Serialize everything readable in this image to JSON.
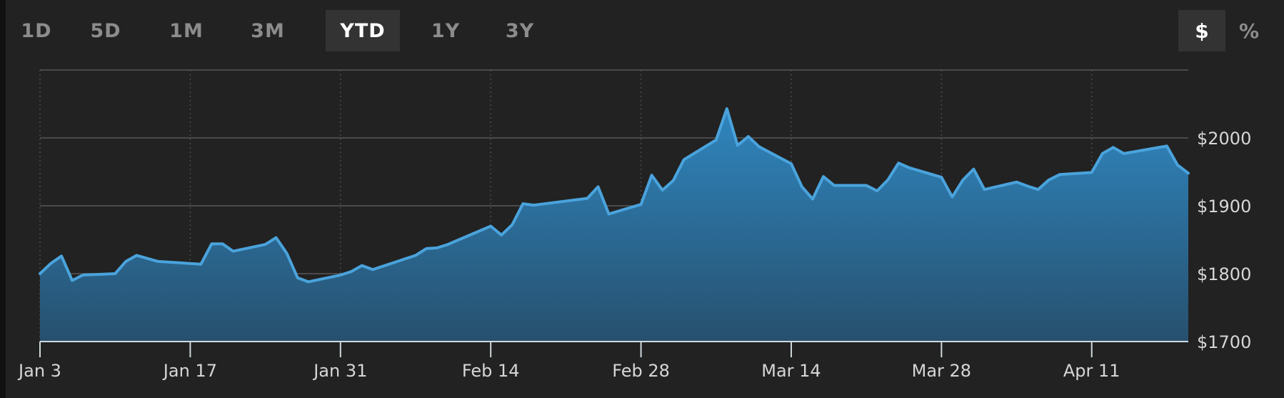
{
  "range_tabs": [
    {
      "label": "1D",
      "active": false
    },
    {
      "label": "5D",
      "active": false
    },
    {
      "label": "1M",
      "active": false
    },
    {
      "label": "3M",
      "active": false
    },
    {
      "label": "YTD",
      "active": true
    },
    {
      "label": "1Y",
      "active": false
    },
    {
      "label": "3Y",
      "active": false
    }
  ],
  "unit_tabs": [
    {
      "label": "$",
      "active": true
    },
    {
      "label": "%",
      "active": false
    }
  ],
  "colors": {
    "background": "#222222",
    "line": "#4aa3dc",
    "fill_top": "#2f86bf",
    "fill_bottom": "#27506e",
    "grid": "#4a4a4a",
    "axis": "#cfd8dc"
  },
  "chart_data": {
    "type": "area",
    "title": "",
    "xlabel": "",
    "ylabel": "",
    "x_tick_labels": [
      "Jan 3",
      "Jan 17",
      "Jan 31",
      "Feb 14",
      "Feb 28",
      "Mar 14",
      "Mar 28",
      "Apr 11"
    ],
    "x_tick_days": [
      0,
      14,
      28,
      42,
      56,
      70,
      84,
      98
    ],
    "y_tick_labels": [
      "$2000",
      "$1900",
      "$1800",
      "$1700"
    ],
    "y_ticks": [
      2000,
      1900,
      1800,
      1700
    ],
    "ylim": [
      1700,
      2100
    ],
    "xlim_days": [
      0,
      107
    ],
    "grid": "on",
    "series": [
      {
        "values_by_day": [
          [
            0,
            1800
          ],
          [
            1,
            1815
          ],
          [
            2,
            1826
          ],
          [
            3,
            1790
          ],
          [
            4,
            1798
          ],
          [
            7,
            1800
          ],
          [
            8,
            1818
          ],
          [
            9,
            1827
          ],
          [
            11,
            1818
          ],
          [
            15,
            1814
          ],
          [
            16,
            1844
          ],
          [
            17,
            1844
          ],
          [
            18,
            1833
          ],
          [
            21,
            1843
          ],
          [
            22,
            1853
          ],
          [
            23,
            1830
          ],
          [
            24,
            1794
          ],
          [
            25,
            1788
          ],
          [
            28,
            1798
          ],
          [
            29,
            1803
          ],
          [
            30,
            1812
          ],
          [
            31,
            1806
          ],
          [
            35,
            1827
          ],
          [
            36,
            1837
          ],
          [
            37,
            1838
          ],
          [
            38,
            1843
          ],
          [
            42,
            1870
          ],
          [
            43,
            1857
          ],
          [
            44,
            1872
          ],
          [
            45,
            1903
          ],
          [
            46,
            1901
          ],
          [
            51,
            1911
          ],
          [
            52,
            1928
          ],
          [
            53,
            1888
          ],
          [
            56,
            1902
          ],
          [
            57,
            1945
          ],
          [
            58,
            1923
          ],
          [
            59,
            1937
          ],
          [
            60,
            1968
          ],
          [
            63,
            1997
          ],
          [
            64,
            2043
          ],
          [
            65,
            1989
          ],
          [
            66,
            2002
          ],
          [
            67,
            1987
          ],
          [
            70,
            1962
          ],
          [
            71,
            1928
          ],
          [
            72,
            1910
          ],
          [
            73,
            1943
          ],
          [
            74,
            1930
          ],
          [
            77,
            1930
          ],
          [
            78,
            1922
          ],
          [
            79,
            1938
          ],
          [
            80,
            1963
          ],
          [
            81,
            1956
          ],
          [
            84,
            1942
          ],
          [
            85,
            1913
          ],
          [
            86,
            1938
          ],
          [
            87,
            1954
          ],
          [
            88,
            1924
          ],
          [
            91,
            1935
          ],
          [
            92,
            1929
          ],
          [
            93,
            1924
          ],
          [
            94,
            1938
          ],
          [
            95,
            1946
          ],
          [
            98,
            1949
          ],
          [
            99,
            1977
          ],
          [
            100,
            1986
          ],
          [
            101,
            1977
          ],
          [
            105,
            1988
          ],
          [
            106,
            1960
          ],
          [
            107,
            1948
          ]
        ]
      }
    ]
  }
}
